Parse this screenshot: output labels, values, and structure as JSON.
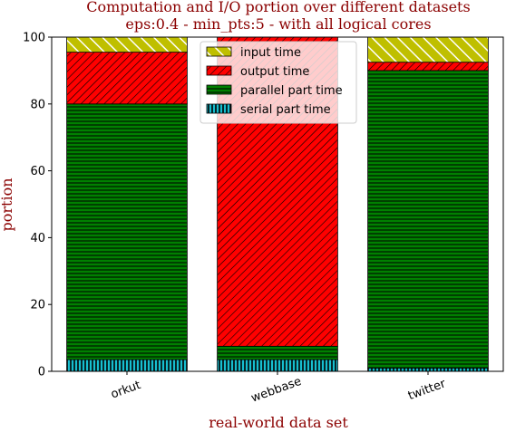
{
  "chart_data": {
    "type": "bar",
    "stacked": true,
    "title": "Computation and I/O portion over different datasets",
    "subtitle": "eps:0.4 - min_pts:5 - with all logical cores",
    "xlabel": "real-world data set",
    "ylabel": "portion",
    "ylim": [
      0,
      100
    ],
    "yticks": [
      0,
      20,
      40,
      60,
      80,
      100
    ],
    "categories": [
      "orkut",
      "webbase",
      "twitter"
    ],
    "series": [
      {
        "name": "serial part time",
        "color": "#17becf",
        "hatch": "vertical-lines",
        "values": [
          3.5,
          3.5,
          1.0
        ]
      },
      {
        "name": "parallel part time",
        "color": "#008000",
        "hatch": "horizontal-lines",
        "values": [
          76.5,
          4.0,
          89.0
        ]
      },
      {
        "name": "output time",
        "color": "#ff0000",
        "hatch": "diagonal-lines",
        "values": [
          15.5,
          92.5,
          2.5
        ]
      },
      {
        "name": "input time",
        "color": "#bfbf00",
        "hatch": "diagonal-back",
        "values": [
          4.5,
          0.0,
          7.5
        ]
      }
    ],
    "legend_order": [
      "input time",
      "output time",
      "parallel part time",
      "serial part time"
    ],
    "legend_position": "top-center",
    "grid": false
  }
}
